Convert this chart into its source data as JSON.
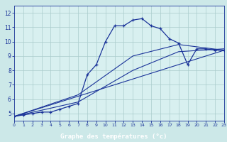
{
  "xlabel": "Graphe des températures (°c)",
  "background_color": "#cce8e8",
  "plot_bg_color": "#d8f0f0",
  "label_bar_color": "#2244aa",
  "line_color": "#1a3399",
  "grid_color": "#aacccc",
  "xlim": [
    0,
    23
  ],
  "ylim": [
    4.5,
    12.5
  ],
  "yticks": [
    5,
    6,
    7,
    8,
    9,
    10,
    11,
    12
  ],
  "xticks": [
    0,
    1,
    2,
    3,
    4,
    5,
    6,
    7,
    8,
    9,
    10,
    11,
    12,
    13,
    14,
    15,
    16,
    17,
    18,
    19,
    20,
    21,
    22,
    23
  ],
  "curve1_x": [
    0,
    1,
    2,
    3,
    4,
    5,
    6,
    7,
    8,
    9,
    10,
    11,
    12,
    13,
    14,
    15,
    16,
    17,
    18,
    19,
    20,
    21,
    22,
    23
  ],
  "curve1_y": [
    4.8,
    4.9,
    5.0,
    5.1,
    5.1,
    5.3,
    5.5,
    5.7,
    7.7,
    8.4,
    10.0,
    11.1,
    11.1,
    11.5,
    11.6,
    11.1,
    10.9,
    10.2,
    9.9,
    8.4,
    9.5,
    9.5,
    9.4,
    9.4
  ],
  "curve2_x": [
    0,
    7,
    13,
    18,
    23
  ],
  "curve2_y": [
    4.8,
    5.8,
    8.0,
    9.3,
    9.5
  ],
  "curve3_x": [
    0,
    7,
    13,
    18,
    23
  ],
  "curve3_y": [
    4.8,
    6.3,
    9.0,
    9.8,
    9.4
  ],
  "curve4_x": [
    0,
    23
  ],
  "curve4_y": [
    4.8,
    9.4
  ]
}
